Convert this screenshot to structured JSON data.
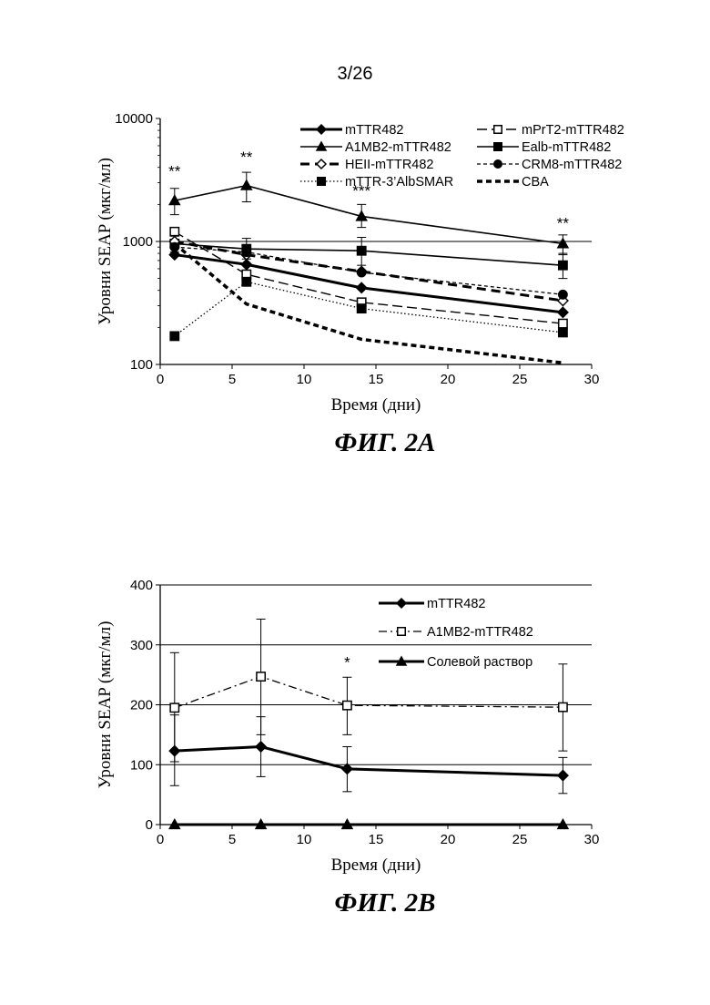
{
  "page": {
    "number": "3/26"
  },
  "chart_data": [
    {
      "type": "line",
      "caption": "ФИГ. 2А",
      "xlabel": "Время (дни)",
      "ylabel": "Уровни SEAP (мкг/мл)",
      "xlim": [
        0,
        30
      ],
      "ylim": [
        100,
        10000
      ],
      "yscale": "log",
      "xticks": [
        "0",
        "5",
        "10",
        "15",
        "20",
        "25",
        "30"
      ],
      "yticks": [
        "100",
        "1000",
        "10000"
      ],
      "grid": "horizontal-at-1000",
      "legend_position": "top",
      "annotations": [
        {
          "text": "**",
          "x": 1,
          "y": 3400
        },
        {
          "text": "**",
          "x": 6,
          "y": 4400
        },
        {
          "text": "***",
          "x": 14,
          "y": 2350
        },
        {
          "text": "**",
          "x": 28,
          "y": 1280
        }
      ],
      "series": [
        {
          "name": "mTTR482",
          "style": "solid-thick",
          "marker": "diamond-filled",
          "x": [
            1,
            6,
            14,
            28
          ],
          "y": [
            780,
            650,
            420,
            265
          ]
        },
        {
          "name": "mPrT2-mTTR482",
          "style": "dash-long",
          "marker": "square-open",
          "x": [
            1,
            6,
            14,
            28
          ],
          "y": [
            1200,
            540,
            320,
            215
          ]
        },
        {
          "name": "A1MB2-mTTR482",
          "style": "solid",
          "marker": "triangle-filled",
          "x": [
            1,
            6,
            14,
            28
          ],
          "y": [
            2150,
            2850,
            1600,
            960
          ],
          "err_low": [
            1650,
            2100,
            1300,
            780
          ],
          "err_high": [
            2700,
            3650,
            2000,
            1130
          ]
        },
        {
          "name": "Ealb-mTTR482",
          "style": "solid",
          "marker": "square-filled",
          "x": [
            1,
            6,
            14,
            28
          ],
          "y": [
            960,
            870,
            840,
            640
          ],
          "err_low": [
            820,
            720,
            640,
            500
          ],
          "err_high": [
            1120,
            1060,
            1080,
            800
          ]
        },
        {
          "name": "HEII-mTTR482",
          "style": "dash-thick",
          "marker": "diamond-open",
          "x": [
            1,
            6,
            14,
            28
          ],
          "y": [
            1000,
            780,
            570,
            330
          ]
        },
        {
          "name": "CRM8-mTTR482",
          "style": "dash-short",
          "marker": "circle-filled",
          "x": [
            1,
            6,
            14,
            28
          ],
          "y": [
            900,
            820,
            560,
            370
          ]
        },
        {
          "name": "mTTR-3’AlbSMAR",
          "style": "dotted",
          "marker": "square-filled",
          "x": [
            1,
            6,
            14,
            28
          ],
          "y": [
            170,
            470,
            285,
            182
          ]
        },
        {
          "name": "CBA",
          "style": "dash-bold",
          "marker": "none",
          "x": [
            1,
            6,
            14,
            28
          ],
          "y": [
            960,
            310,
            160,
            103
          ]
        }
      ]
    },
    {
      "type": "line",
      "caption": "ФИГ. 2В",
      "xlabel": "Время (дни)",
      "ylabel": "Уровни SEAP (мкг/мл)",
      "xlim": [
        0,
        30
      ],
      "ylim": [
        0,
        400
      ],
      "xticks": [
        "0",
        "5",
        "10",
        "15",
        "20",
        "25",
        "30"
      ],
      "yticks": [
        "0",
        "100",
        "200",
        "300",
        "400"
      ],
      "grid": "horizontal",
      "legend_position": "top-right",
      "annotations": [
        {
          "text": "*",
          "x": 13,
          "y": 262
        }
      ],
      "series": [
        {
          "name": "mTTR482",
          "style": "solid-thick",
          "marker": "diamond-filled",
          "x": [
            1,
            7,
            13,
            28
          ],
          "y": [
            123,
            130,
            93,
            82
          ],
          "err_low": [
            65,
            80,
            55,
            52
          ],
          "err_high": [
            183,
            180,
            130,
            112
          ]
        },
        {
          "name": "A1MB2-mTTR482",
          "style": "dashdot",
          "marker": "square-open",
          "x": [
            1,
            7,
            13,
            28
          ],
          "y": [
            195,
            247,
            199,
            196
          ],
          "err_low": [
            105,
            150,
            150,
            123
          ],
          "err_high": [
            287,
            343,
            246,
            268
          ]
        },
        {
          "name": "Солевой раствор",
          "style": "solid-thick",
          "marker": "triangle-filled",
          "x": [
            1,
            7,
            13,
            28
          ],
          "y": [
            0,
            0,
            0,
            0
          ]
        }
      ]
    }
  ]
}
